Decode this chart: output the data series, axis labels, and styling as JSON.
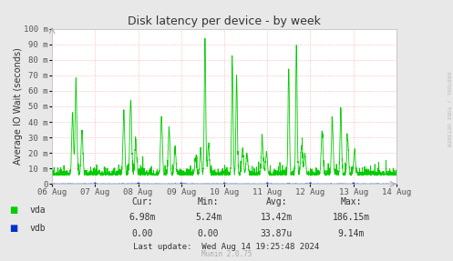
{
  "title": "Disk latency per device - by week",
  "ylabel": "Average IO Wait (seconds)",
  "rrdtool_label": "RRDTOOL / TOBI OETIKER",
  "munin_label": "Munin 2.0.75",
  "background_color": "#e8e8e8",
  "plot_bg_color": "#ffffff",
  "grid_color": "#ffaaaa",
  "title_color": "#333333",
  "axis_color": "#333333",
  "tick_color": "#555555",
  "xmin": 0,
  "xmax": 8,
  "ymin": 0,
  "ymax": 100,
  "ytick_vals": [
    0,
    10,
    20,
    30,
    40,
    50,
    60,
    70,
    80,
    90,
    100
  ],
  "ytick_labels": [
    "0",
    "10 m",
    "20 m",
    "30 m",
    "40 m",
    "50 m",
    "60 m",
    "70 m",
    "80 m",
    "90 m",
    "100 m"
  ],
  "xtick_positions": [
    0,
    1,
    2,
    3,
    4,
    5,
    6,
    7,
    8
  ],
  "xtick_labels": [
    "06 Aug",
    "07 Aug",
    "08 Aug",
    "09 Aug",
    "10 Aug",
    "11 Aug",
    "12 Aug",
    "13 Aug",
    "14 Aug"
  ],
  "vda_color": "#00cc00",
  "vdb_color": "#0033cc",
  "legend_vda": "vda",
  "legend_vdb": "vdb",
  "cur_label": "Cur:",
  "min_label": "Min:",
  "avg_label": "Avg:",
  "max_label": "Max:",
  "vda_cur": "6.98m",
  "vda_min": "5.24m",
  "vda_avg": "13.42m",
  "vda_max": "186.15m",
  "vdb_cur": "0.00",
  "vdb_min": "0.00",
  "vdb_avg": "33.87u",
  "vdb_max": "9.14m",
  "last_update": "Last update:  Wed Aug 14 19:25:48 2024"
}
